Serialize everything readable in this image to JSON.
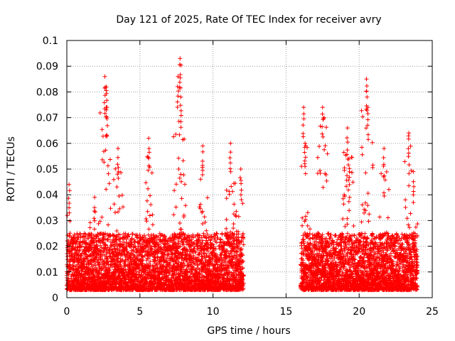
{
  "chart_data": {
    "type": "scatter",
    "title": "Day 121 of 2025, Rate Of TEC Index for receiver avry",
    "xlabel": "GPS time / hours",
    "ylabel": "ROTI / TECUs",
    "xlim": [
      0,
      25
    ],
    "ylim": [
      0,
      0.1
    ],
    "x_ticks": [
      0,
      5,
      10,
      15,
      20,
      25
    ],
    "x_tick_labels": [
      "0",
      "5",
      "10",
      "15",
      "20",
      "25"
    ],
    "y_ticks": [
      0,
      0.01,
      0.02,
      0.03,
      0.04,
      0.05,
      0.06,
      0.07,
      0.08,
      0.09,
      0.1
    ],
    "y_tick_labels": [
      "0",
      "0.01",
      "0.02",
      "0.03",
      "0.04",
      "0.05",
      "0.06",
      "0.07",
      "0.08",
      "0.09",
      "0.1"
    ],
    "grid": true,
    "marker": "+",
    "marker_color": "#ff0000",
    "data_segments": [
      {
        "x_start": 0.0,
        "x_end": 12.1
      },
      {
        "x_start": 16.0,
        "x_end": 24.0
      }
    ],
    "peaks": [
      {
        "x": 0.15,
        "y": 0.044
      },
      {
        "x": 1.9,
        "y": 0.039
      },
      {
        "x": 2.6,
        "y": 0.086
      },
      {
        "x": 2.7,
        "y": 0.082
      },
      {
        "x": 2.75,
        "y": 0.074
      },
      {
        "x": 3.5,
        "y": 0.058
      },
      {
        "x": 5.6,
        "y": 0.062
      },
      {
        "x": 7.6,
        "y": 0.086
      },
      {
        "x": 7.75,
        "y": 0.093
      },
      {
        "x": 7.8,
        "y": 0.078
      },
      {
        "x": 9.3,
        "y": 0.059
      },
      {
        "x": 11.2,
        "y": 0.06
      },
      {
        "x": 11.9,
        "y": 0.05
      },
      {
        "x": 16.2,
        "y": 0.074
      },
      {
        "x": 16.3,
        "y": 0.06
      },
      {
        "x": 17.5,
        "y": 0.074
      },
      {
        "x": 19.2,
        "y": 0.066
      },
      {
        "x": 19.3,
        "y": 0.054
      },
      {
        "x": 20.5,
        "y": 0.085
      },
      {
        "x": 20.6,
        "y": 0.074
      },
      {
        "x": 21.7,
        "y": 0.058
      },
      {
        "x": 23.4,
        "y": 0.064
      },
      {
        "x": 23.7,
        "y": 0.049
      }
    ],
    "typical_range": [
      0.003,
      0.025
    ]
  }
}
